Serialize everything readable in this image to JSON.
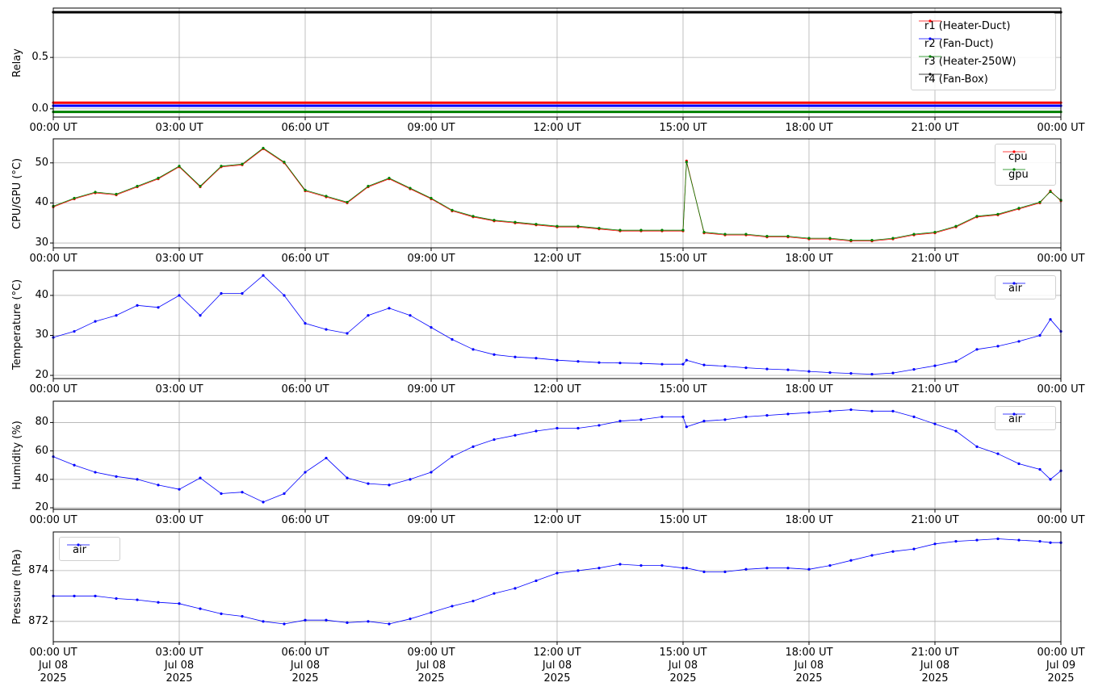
{
  "chart_data": [
    {
      "type": "line",
      "ylabel": "Relay",
      "legend": "upper right",
      "grid": true,
      "x": [
        "2025-07-08T00:00",
        "2025-07-09T00:00"
      ],
      "series": [
        {
          "name": "r1 (Heater-Duct)",
          "color": "#ff0000",
          "values": [
            0.06,
            0.06
          ]
        },
        {
          "name": "r2 (Fan-Duct)",
          "color": "#0000ff",
          "values": [
            0.03,
            0.03
          ]
        },
        {
          "name": "r3 (Heater-250W)",
          "color": "#008000",
          "values": [
            -0.03,
            -0.03
          ]
        },
        {
          "name": "r4 (Fan-Box)",
          "color": "#000000",
          "values": [
            0.94,
            0.94
          ]
        }
      ],
      "xlim": [
        "2025-07-08T00:00",
        "2025-07-09T00:00"
      ],
      "xticks": [
        {
          "value": "2025-07-08T00:00",
          "label": "00:00 UT"
        },
        {
          "value": "2025-07-08T03:00",
          "label": "03:00 UT"
        },
        {
          "value": "2025-07-08T06:00",
          "label": "06:00 UT"
        },
        {
          "value": "2025-07-08T09:00",
          "label": "09:00 UT"
        },
        {
          "value": "2025-07-08T12:00",
          "label": "12:00 UT"
        },
        {
          "value": "2025-07-08T15:00",
          "label": "15:00 UT"
        },
        {
          "value": "2025-07-08T18:00",
          "label": "18:00 UT"
        },
        {
          "value": "2025-07-08T21:00",
          "label": "21:00 UT"
        },
        {
          "value": "2025-07-09T00:00",
          "label": "00:00 UT"
        }
      ],
      "ylim": [
        -0.08,
        0.98
      ],
      "yticks": [
        {
          "value": 0,
          "label": "0.0"
        },
        0.5
      ]
    },
    {
      "type": "line",
      "ylabel": "CPU/GPU (°C)",
      "legend": "upper right",
      "grid": true,
      "x": [
        "2025-07-08T00:00",
        "2025-07-08T00:30",
        "2025-07-08T01:00",
        "2025-07-08T01:30",
        "2025-07-08T02:00",
        "2025-07-08T02:30",
        "2025-07-08T03:00",
        "2025-07-08T03:30",
        "2025-07-08T04:00",
        "2025-07-08T04:30",
        "2025-07-08T05:00",
        "2025-07-08T05:30",
        "2025-07-08T06:00",
        "2025-07-08T06:30",
        "2025-07-08T07:00",
        "2025-07-08T07:30",
        "2025-07-08T08:00",
        "2025-07-08T08:30",
        "2025-07-08T09:00",
        "2025-07-08T09:30",
        "2025-07-08T10:00",
        "2025-07-08T10:30",
        "2025-07-08T11:00",
        "2025-07-08T11:30",
        "2025-07-08T12:00",
        "2025-07-08T12:30",
        "2025-07-08T13:00",
        "2025-07-08T13:30",
        "2025-07-08T14:00",
        "2025-07-08T14:30",
        "2025-07-08T15:00",
        "2025-07-08T15:05",
        "2025-07-08T15:30",
        "2025-07-08T16:00",
        "2025-07-08T16:30",
        "2025-07-08T17:00",
        "2025-07-08T17:30",
        "2025-07-08T18:00",
        "2025-07-08T18:30",
        "2025-07-08T19:00",
        "2025-07-08T19:30",
        "2025-07-08T20:00",
        "2025-07-08T20:30",
        "2025-07-08T21:00",
        "2025-07-08T21:30",
        "2025-07-08T22:00",
        "2025-07-08T22:30",
        "2025-07-08T23:00",
        "2025-07-08T23:30",
        "2025-07-08T23:45",
        "2025-07-09T00:00"
      ],
      "series": [
        {
          "name": "cpu",
          "color": "#ff0000",
          "values": [
            39,
            41,
            42.5,
            42,
            44,
            46,
            49,
            44,
            49,
            49.5,
            53.5,
            50,
            43,
            41.5,
            40,
            44,
            46,
            43.5,
            41,
            38,
            36.5,
            35.5,
            35,
            34.5,
            34,
            34,
            33.5,
            33,
            33,
            33,
            33,
            50.5,
            32.5,
            32,
            32,
            31.5,
            31.5,
            31,
            31,
            30.5,
            30.5,
            31,
            32,
            32.5,
            34,
            36.5,
            37,
            38.5,
            40,
            43,
            40.5
          ]
        },
        {
          "name": "gpu",
          "color": "#008000",
          "values": [
            39.2,
            41.2,
            42.7,
            42.2,
            44.2,
            46.2,
            49.2,
            44.2,
            49.2,
            49.7,
            53.7,
            50.2,
            43.2,
            41.7,
            40.2,
            44.2,
            46.2,
            43.7,
            41.2,
            38.2,
            36.7,
            35.7,
            35.2,
            34.7,
            34.2,
            34.2,
            33.7,
            33.2,
            33.2,
            33.2,
            33.2,
            50.2,
            32.7,
            32.2,
            32.2,
            31.7,
            31.7,
            31.2,
            31.2,
            30.7,
            30.7,
            31.2,
            32.2,
            32.7,
            34.2,
            36.7,
            37.2,
            38.7,
            40.2,
            42.8,
            40.7
          ]
        }
      ],
      "xlim": [
        "2025-07-08T00:00",
        "2025-07-09T00:00"
      ],
      "xticks": [
        {
          "value": "2025-07-08T00:00",
          "label": "00:00 UT"
        },
        {
          "value": "2025-07-08T03:00",
          "label": "03:00 UT"
        },
        {
          "value": "2025-07-08T06:00",
          "label": "06:00 UT"
        },
        {
          "value": "2025-07-08T09:00",
          "label": "09:00 UT"
        },
        {
          "value": "2025-07-08T12:00",
          "label": "12:00 UT"
        },
        {
          "value": "2025-07-08T15:00",
          "label": "15:00 UT"
        },
        {
          "value": "2025-07-08T18:00",
          "label": "18:00 UT"
        },
        {
          "value": "2025-07-08T21:00",
          "label": "21:00 UT"
        },
        {
          "value": "2025-07-09T00:00",
          "label": "00:00 UT"
        }
      ],
      "ylim": [
        28.8,
        56
      ],
      "yticks": [
        30,
        40,
        50
      ]
    },
    {
      "type": "line",
      "ylabel": "Temperature (°C)",
      "legend": "upper right",
      "grid": true,
      "x": [
        "2025-07-08T00:00",
        "2025-07-08T00:30",
        "2025-07-08T01:00",
        "2025-07-08T01:30",
        "2025-07-08T02:00",
        "2025-07-08T02:30",
        "2025-07-08T03:00",
        "2025-07-08T03:30",
        "2025-07-08T04:00",
        "2025-07-08T04:30",
        "2025-07-08T05:00",
        "2025-07-08T05:30",
        "2025-07-08T06:00",
        "2025-07-08T06:30",
        "2025-07-08T07:00",
        "2025-07-08T07:30",
        "2025-07-08T08:00",
        "2025-07-08T08:30",
        "2025-07-08T09:00",
        "2025-07-08T09:30",
        "2025-07-08T10:00",
        "2025-07-08T10:30",
        "2025-07-08T11:00",
        "2025-07-08T11:30",
        "2025-07-08T12:00",
        "2025-07-08T12:30",
        "2025-07-08T13:00",
        "2025-07-08T13:30",
        "2025-07-08T14:00",
        "2025-07-08T14:30",
        "2025-07-08T15:00",
        "2025-07-08T15:05",
        "2025-07-08T15:30",
        "2025-07-08T16:00",
        "2025-07-08T16:30",
        "2025-07-08T17:00",
        "2025-07-08T17:30",
        "2025-07-08T18:00",
        "2025-07-08T18:30",
        "2025-07-08T19:00",
        "2025-07-08T19:30",
        "2025-07-08T20:00",
        "2025-07-08T20:30",
        "2025-07-08T21:00",
        "2025-07-08T21:30",
        "2025-07-08T22:00",
        "2025-07-08T22:30",
        "2025-07-08T23:00",
        "2025-07-08T23:30",
        "2025-07-08T23:45",
        "2025-07-09T00:00"
      ],
      "series": [
        {
          "name": "air",
          "color": "#0000ff",
          "values": [
            29.5,
            31,
            33.5,
            35,
            37.5,
            37,
            40,
            35,
            40.5,
            40.5,
            45,
            40,
            33,
            31.5,
            30.5,
            35,
            36.8,
            35,
            32,
            29,
            26.5,
            25.2,
            24.6,
            24.3,
            23.8,
            23.5,
            23.2,
            23.1,
            23,
            22.8,
            22.8,
            23.8,
            22.6,
            22.3,
            21.9,
            21.6,
            21.4,
            21,
            20.7,
            20.5,
            20.3,
            20.6,
            21.5,
            22.4,
            23.5,
            26.5,
            27.3,
            28.5,
            30,
            34,
            31
          ]
        }
      ],
      "xlim": [
        "2025-07-08T00:00",
        "2025-07-09T00:00"
      ],
      "xticks": [
        {
          "value": "2025-07-08T00:00",
          "label": "00:00 UT"
        },
        {
          "value": "2025-07-08T03:00",
          "label": "03:00 UT"
        },
        {
          "value": "2025-07-08T06:00",
          "label": "06:00 UT"
        },
        {
          "value": "2025-07-08T09:00",
          "label": "09:00 UT"
        },
        {
          "value": "2025-07-08T12:00",
          "label": "12:00 UT"
        },
        {
          "value": "2025-07-08T15:00",
          "label": "15:00 UT"
        },
        {
          "value": "2025-07-08T18:00",
          "label": "18:00 UT"
        },
        {
          "value": "2025-07-08T21:00",
          "label": "21:00 UT"
        },
        {
          "value": "2025-07-09T00:00",
          "label": "00:00 UT"
        }
      ],
      "ylim": [
        19.2,
        46.25
      ],
      "yticks": [
        20,
        30,
        40
      ]
    },
    {
      "type": "line",
      "ylabel": "Humidity (%)",
      "legend": "upper right",
      "grid": true,
      "x": [
        "2025-07-08T00:00",
        "2025-07-08T00:30",
        "2025-07-08T01:00",
        "2025-07-08T01:30",
        "2025-07-08T02:00",
        "2025-07-08T02:30",
        "2025-07-08T03:00",
        "2025-07-08T03:30",
        "2025-07-08T04:00",
        "2025-07-08T04:30",
        "2025-07-08T05:00",
        "2025-07-08T05:30",
        "2025-07-08T06:00",
        "2025-07-08T06:30",
        "2025-07-08T07:00",
        "2025-07-08T07:30",
        "2025-07-08T08:00",
        "2025-07-08T08:30",
        "2025-07-08T09:00",
        "2025-07-08T09:30",
        "2025-07-08T10:00",
        "2025-07-08T10:30",
        "2025-07-08T11:00",
        "2025-07-08T11:30",
        "2025-07-08T12:00",
        "2025-07-08T12:30",
        "2025-07-08T13:00",
        "2025-07-08T13:30",
        "2025-07-08T14:00",
        "2025-07-08T14:30",
        "2025-07-08T15:00",
        "2025-07-08T15:05",
        "2025-07-08T15:30",
        "2025-07-08T16:00",
        "2025-07-08T16:30",
        "2025-07-08T17:00",
        "2025-07-08T17:30",
        "2025-07-08T18:00",
        "2025-07-08T18:30",
        "2025-07-08T19:00",
        "2025-07-08T19:30",
        "2025-07-08T20:00",
        "2025-07-08T20:30",
        "2025-07-08T21:00",
        "2025-07-08T21:30",
        "2025-07-08T22:00",
        "2025-07-08T22:30",
        "2025-07-08T23:00",
        "2025-07-08T23:30",
        "2025-07-08T23:45",
        "2025-07-09T00:00"
      ],
      "series": [
        {
          "name": "air",
          "color": "#0000ff",
          "values": [
            56,
            50,
            45,
            42,
            40,
            36,
            33,
            41,
            30,
            31,
            24,
            30,
            45,
            55,
            41,
            37,
            36,
            40,
            45,
            56,
            63,
            68,
            71,
            74,
            76,
            76,
            78,
            81,
            82,
            84,
            84,
            77,
            81,
            82,
            84,
            85,
            86,
            87,
            88,
            89,
            88,
            88,
            84,
            79,
            74,
            63,
            58,
            51,
            47,
            40,
            46
          ]
        }
      ],
      "xlim": [
        "2025-07-08T00:00",
        "2025-07-09T00:00"
      ],
      "xticks": [
        {
          "value": "2025-07-08T00:00",
          "label": "00:00 UT"
        },
        {
          "value": "2025-07-08T03:00",
          "label": "03:00 UT"
        },
        {
          "value": "2025-07-08T06:00",
          "label": "06:00 UT"
        },
        {
          "value": "2025-07-08T09:00",
          "label": "09:00 UT"
        },
        {
          "value": "2025-07-08T12:00",
          "label": "12:00 UT"
        },
        {
          "value": "2025-07-08T15:00",
          "label": "15:00 UT"
        },
        {
          "value": "2025-07-08T18:00",
          "label": "18:00 UT"
        },
        {
          "value": "2025-07-08T21:00",
          "label": "21:00 UT"
        },
        {
          "value": "2025-07-09T00:00",
          "label": "00:00 UT"
        }
      ],
      "ylim": [
        18.9,
        95
      ],
      "yticks": [
        20,
        40,
        60,
        80
      ]
    },
    {
      "type": "line",
      "ylabel": "Pressure (hPa)",
      "legend": "upper left",
      "grid": true,
      "x": [
        "2025-07-08T00:00",
        "2025-07-08T00:30",
        "2025-07-08T01:00",
        "2025-07-08T01:30",
        "2025-07-08T02:00",
        "2025-07-08T02:30",
        "2025-07-08T03:00",
        "2025-07-08T03:30",
        "2025-07-08T04:00",
        "2025-07-08T04:30",
        "2025-07-08T05:00",
        "2025-07-08T05:30",
        "2025-07-08T06:00",
        "2025-07-08T06:30",
        "2025-07-08T07:00",
        "2025-07-08T07:30",
        "2025-07-08T08:00",
        "2025-07-08T08:30",
        "2025-07-08T09:00",
        "2025-07-08T09:30",
        "2025-07-08T10:00",
        "2025-07-08T10:30",
        "2025-07-08T11:00",
        "2025-07-08T11:30",
        "2025-07-08T12:00",
        "2025-07-08T12:30",
        "2025-07-08T13:00",
        "2025-07-08T13:30",
        "2025-07-08T14:00",
        "2025-07-08T14:30",
        "2025-07-08T15:00",
        "2025-07-08T15:05",
        "2025-07-08T15:30",
        "2025-07-08T16:00",
        "2025-07-08T16:30",
        "2025-07-08T17:00",
        "2025-07-08T17:30",
        "2025-07-08T18:00",
        "2025-07-08T18:30",
        "2025-07-08T19:00",
        "2025-07-08T19:30",
        "2025-07-08T20:00",
        "2025-07-08T20:30",
        "2025-07-08T21:00",
        "2025-07-08T21:30",
        "2025-07-08T22:00",
        "2025-07-08T22:30",
        "2025-07-08T23:00",
        "2025-07-08T23:30",
        "2025-07-08T23:45",
        "2025-07-09T00:00"
      ],
      "series": [
        {
          "name": "air",
          "color": "#0000ff",
          "values": [
            873,
            873,
            873,
            872.9,
            872.85,
            872.75,
            872.7,
            872.5,
            872.3,
            872.2,
            872,
            871.9,
            872.05,
            872.05,
            871.95,
            872,
            871.9,
            872.1,
            872.35,
            872.6,
            872.8,
            873.1,
            873.3,
            873.6,
            873.9,
            874,
            874.1,
            874.25,
            874.2,
            874.2,
            874.1,
            874.1,
            873.95,
            873.95,
            874.05,
            874.1,
            874.1,
            874.05,
            874.2,
            874.4,
            874.6,
            874.75,
            874.85,
            875.05,
            875.15,
            875.2,
            875.25,
            875.2,
            875.15,
            875.1,
            875.1
          ]
        }
      ],
      "xlim": [
        "2025-07-08T00:00",
        "2025-07-09T00:00"
      ],
      "xticks": [
        {
          "value": "2025-07-08T00:00",
          "label": "00:00 UT\nJul 08\n2025"
        },
        {
          "value": "2025-07-08T03:00",
          "label": "03:00 UT\nJul 08\n2025"
        },
        {
          "value": "2025-07-08T06:00",
          "label": "06:00 UT\nJul 08\n2025"
        },
        {
          "value": "2025-07-08T09:00",
          "label": "09:00 UT\nJul 08\n2025"
        },
        {
          "value": "2025-07-08T12:00",
          "label": "12:00 UT\nJul 08\n2025"
        },
        {
          "value": "2025-07-08T15:00",
          "label": "15:00 UT\nJul 08\n2025"
        },
        {
          "value": "2025-07-08T18:00",
          "label": "18:00 UT\nJul 08\n2025"
        },
        {
          "value": "2025-07-08T21:00",
          "label": "21:00 UT\nJul 08\n2025"
        },
        {
          "value": "2025-07-09T00:00",
          "label": "00:00 UT\nJul 09\n2025"
        }
      ],
      "ylim": [
        871.2,
        875.52
      ],
      "yticks": [
        872,
        874
      ]
    }
  ]
}
